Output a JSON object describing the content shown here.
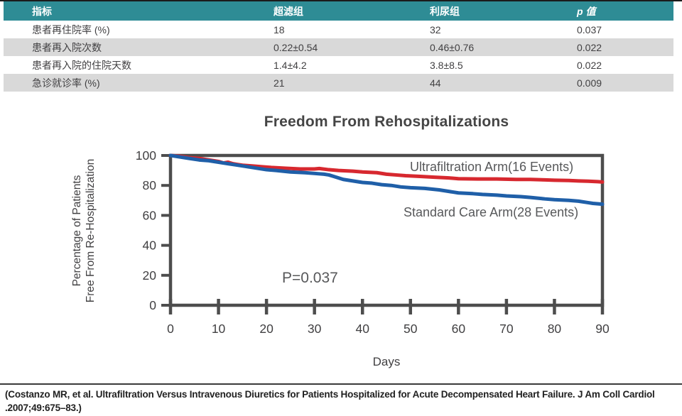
{
  "table": {
    "headers": [
      "指标",
      "超滤组",
      "利尿组",
      "p 值"
    ],
    "rows": [
      [
        "患者再住院率 (%)",
        "18",
        "32",
        "0.037"
      ],
      [
        "患者再入院次数",
        "0.22±0.54",
        "0.46±0.76",
        "0.022"
      ],
      [
        "患者再入院的住院天数",
        "1.4±4.2",
        "3.8±8.5",
        "0.022"
      ],
      [
        "急诊就诊率 (%)",
        "21",
        "44",
        "0.009"
      ]
    ],
    "header_bg": "#2e8c95",
    "row_alt_bg": "#d9d9d9"
  },
  "chart_data": {
    "type": "line",
    "title": "Freedom From Rehospitalizations",
    "xlabel": "Days",
    "ylabel_line1": "Percentage of Patients",
    "ylabel_line2": "Free From Re-Hospitalization",
    "annotation": "P=0.037",
    "xlim": [
      0,
      90
    ],
    "ylim": [
      0,
      100
    ],
    "x_ticks": [
      0,
      10,
      20,
      30,
      40,
      50,
      60,
      70,
      80,
      90
    ],
    "y_ticks": [
      0,
      20,
      40,
      60,
      80,
      100
    ],
    "grid": false,
    "legend_position": "inline-right",
    "axis_color": "#4d4d4d",
    "series": [
      {
        "name": "Ultrafiltration Arm(16 Events)",
        "color": "#d7282f",
        "points": [
          [
            0,
            100
          ],
          [
            2,
            99.5
          ],
          [
            4,
            98.5
          ],
          [
            6,
            98
          ],
          [
            8,
            97
          ],
          [
            9,
            96.5
          ],
          [
            10,
            96
          ],
          [
            11,
            95
          ],
          [
            12,
            95.5
          ],
          [
            13,
            94.5
          ],
          [
            14,
            94
          ],
          [
            15,
            93.5
          ],
          [
            17,
            93
          ],
          [
            19,
            92.5
          ],
          [
            21,
            92
          ],
          [
            24,
            91.5
          ],
          [
            27,
            91
          ],
          [
            30,
            91
          ],
          [
            31,
            91.3
          ],
          [
            33,
            90.5
          ],
          [
            35,
            90
          ],
          [
            38,
            89.5
          ],
          [
            40,
            89
          ],
          [
            43,
            88.5
          ],
          [
            45,
            87.5
          ],
          [
            47,
            87
          ],
          [
            49,
            86.5
          ],
          [
            52,
            86
          ],
          [
            55,
            85.5
          ],
          [
            58,
            85
          ],
          [
            60,
            84.5
          ],
          [
            64,
            84.3
          ],
          [
            68,
            84.3
          ],
          [
            72,
            84
          ],
          [
            75,
            84
          ],
          [
            78,
            83.7
          ],
          [
            80,
            83.5
          ],
          [
            83,
            83.3
          ],
          [
            85,
            83
          ],
          [
            87,
            82.8
          ],
          [
            89,
            82.5
          ],
          [
            90,
            82.3
          ]
        ]
      },
      {
        "name": "Standard Care Arm(28 Events)",
        "color": "#1f5fa8",
        "points": [
          [
            0,
            100
          ],
          [
            2,
            99
          ],
          [
            4,
            98
          ],
          [
            6,
            97
          ],
          [
            8,
            96.5
          ],
          [
            10,
            95.5
          ],
          [
            12,
            94.5
          ],
          [
            14,
            93.5
          ],
          [
            16,
            92.5
          ],
          [
            18,
            91.5
          ],
          [
            20,
            90.5
          ],
          [
            22,
            90
          ],
          [
            25,
            89
          ],
          [
            28,
            88.5
          ],
          [
            30,
            88
          ],
          [
            32,
            87.5
          ],
          [
            33,
            87
          ],
          [
            34,
            86
          ],
          [
            35,
            85
          ],
          [
            36,
            84
          ],
          [
            38,
            83
          ],
          [
            40,
            82
          ],
          [
            42,
            81.5
          ],
          [
            44,
            80.5
          ],
          [
            46,
            80
          ],
          [
            48,
            79
          ],
          [
            50,
            78.5
          ],
          [
            53,
            78
          ],
          [
            56,
            77
          ],
          [
            58,
            76
          ],
          [
            60,
            75
          ],
          [
            63,
            74.5
          ],
          [
            65,
            74
          ],
          [
            68,
            73.5
          ],
          [
            70,
            73
          ],
          [
            73,
            72.5
          ],
          [
            75,
            72
          ],
          [
            78,
            71
          ],
          [
            80,
            70.5
          ],
          [
            83,
            70
          ],
          [
            85,
            69.5
          ],
          [
            87,
            68.5
          ],
          [
            88,
            68
          ],
          [
            90,
            67.5
          ]
        ]
      }
    ]
  },
  "footer": {
    "citation": "(Costanzo MR, et al. Ultrafiltration Versus Intravenous Diuretics for Patients Hospitalized for Acute Decompensated Heart Failure. J Am Coll Cardiol .2007;49:675–83.)"
  }
}
